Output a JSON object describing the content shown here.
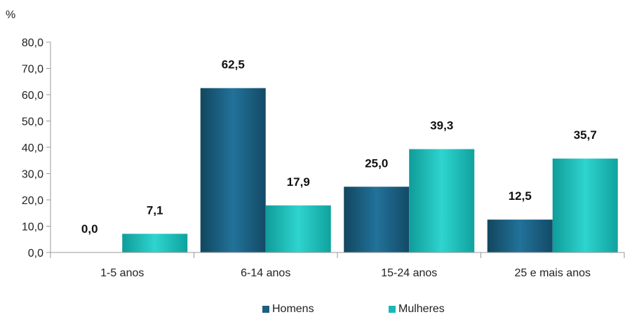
{
  "chart_data": {
    "type": "bar",
    "unit_label": "%",
    "categories": [
      "1-5 anos",
      "6-14 anos",
      "15-24 anos",
      "25 e mais  anos"
    ],
    "series": [
      {
        "name": "Homens",
        "values": [
          0.0,
          62.5,
          25.0,
          12.5
        ],
        "labels": [
          "0,0",
          "62,5",
          "25,0",
          "12,5"
        ],
        "color": "#1e5f80"
      },
      {
        "name": "Mulheres",
        "values": [
          7.1,
          17.9,
          39.3,
          35.7
        ],
        "labels": [
          "7,1",
          "17,9",
          "39,3",
          "35,7"
        ],
        "color": "#1ab8b4"
      }
    ],
    "ylim": [
      0,
      80
    ],
    "yticks": [
      "0,0",
      "10,0",
      "20,0",
      "30,0",
      "40,0",
      "50,0",
      "60,0",
      "70,0",
      "80,0"
    ],
    "grid": false,
    "legend_position": "bottom"
  }
}
